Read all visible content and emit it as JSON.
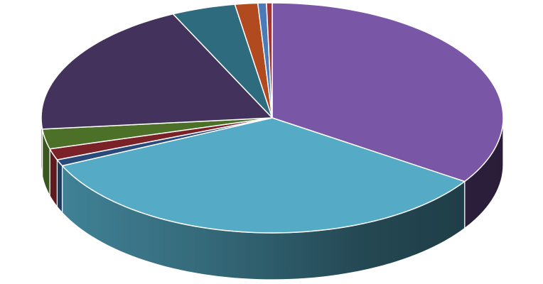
{
  "chart_data": {
    "type": "pie",
    "title": "",
    "style": "3d-pie",
    "legend": "none",
    "start_angle_deg": 0,
    "direction": "clockwise",
    "slices": [
      {
        "value": 34.5,
        "color": "#7a56a6"
      },
      {
        "value": 34.0,
        "color": "#55abc5"
      },
      {
        "value": 0.9,
        "color": "#2b4a7c"
      },
      {
        "value": 1.6,
        "color": "#7a2227"
      },
      {
        "value": 2.8,
        "color": "#4c7027"
      },
      {
        "value": 19.6,
        "color": "#43325c"
      },
      {
        "value": 4.5,
        "color": "#2f6b7e"
      },
      {
        "value": 1.6,
        "color": "#b14a1e"
      },
      {
        "value": 0.6,
        "color": "#4a7ab8"
      },
      {
        "value": 0.4,
        "color": "#a83434"
      }
    ]
  }
}
